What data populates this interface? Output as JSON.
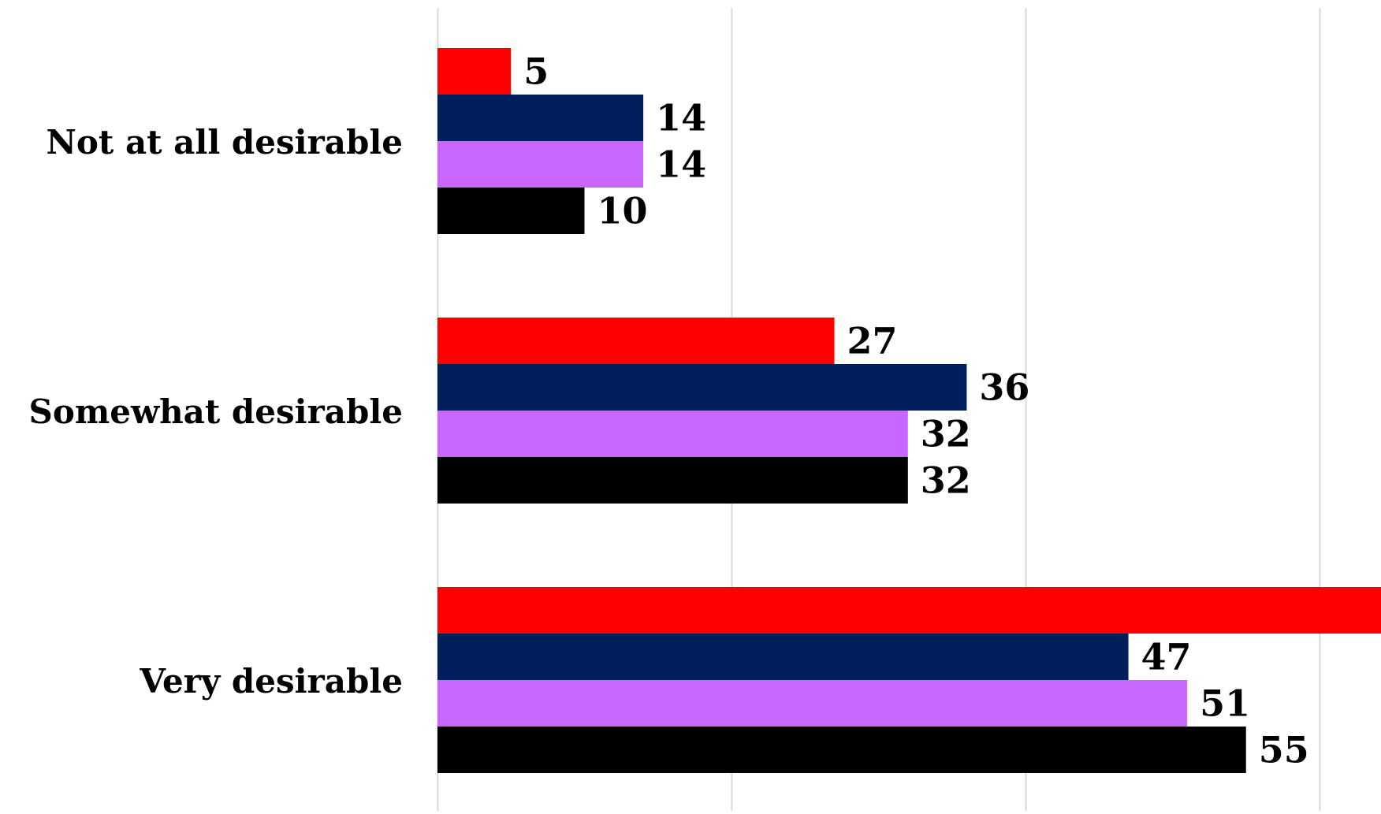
{
  "chart_data": {
    "type": "bar",
    "orientation": "horizontal",
    "categories": [
      "Not at all desirable",
      "Somewhat desirable",
      "Very desirable"
    ],
    "series": [
      {
        "color": "#ff0000",
        "values": [
          5,
          27,
          66
        ]
      },
      {
        "color": "#001f5c",
        "values": [
          14,
          36,
          47
        ]
      },
      {
        "color": "#c966ff",
        "values": [
          14,
          32,
          51
        ]
      },
      {
        "color": "#000000",
        "values": [
          10,
          32,
          55
        ]
      }
    ],
    "xlim": [
      0,
      80
    ],
    "grid": true,
    "data_labels": true,
    "legend": false
  }
}
